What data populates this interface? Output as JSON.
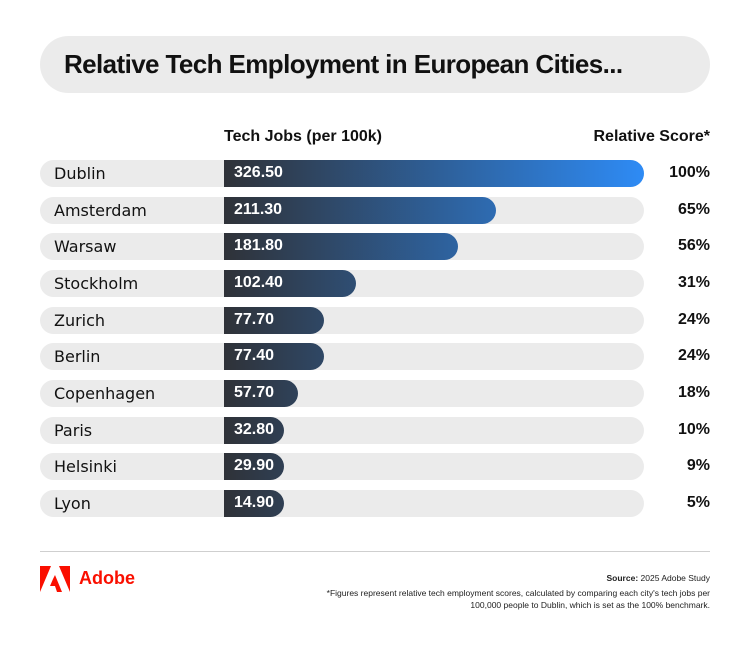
{
  "header": {
    "title": "Relative Tech Employment in European Cities..."
  },
  "colors": {
    "bar_start": "#2f3238",
    "bar_end": "#2e8bf5",
    "track": "#ebebeb",
    "brand_red": "#fa0f00"
  },
  "chart_data": {
    "type": "bar",
    "orientation": "horizontal",
    "title": "Relative Tech Employment in European Cities...",
    "xlabel": "Tech Jobs (per 100k)",
    "score_label": "Relative Score*",
    "categories": [
      "Dublin",
      "Amsterdam",
      "Warsaw",
      "Stockholm",
      "Zurich",
      "Berlin",
      "Copenhagen",
      "Paris",
      "Helsinki",
      "Lyon"
    ],
    "values": [
      326.5,
      211.3,
      181.8,
      102.4,
      77.7,
      77.4,
      57.7,
      32.8,
      29.9,
      14.9
    ],
    "value_labels": [
      "326.50",
      "211.30",
      "181.80",
      "102.40",
      "77.70",
      "77.40",
      "57.70",
      "32.80",
      "29.90",
      "14.90"
    ],
    "scores": [
      "100%",
      "65%",
      "56%",
      "31%",
      "24%",
      "24%",
      "18%",
      "10%",
      "9%",
      "5%"
    ],
    "xlim": [
      0,
      326.5
    ]
  },
  "footer": {
    "brand": "Adobe",
    "source_label": "Source:",
    "source_text": " 2025 Adobe Study",
    "note": "*Figures represent relative tech employment scores, calculated by comparing each city's tech jobs per 100,000 people to Dublin, which is set as the 100% benchmark."
  }
}
